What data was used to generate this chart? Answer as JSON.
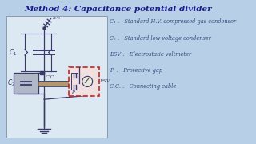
{
  "title": "Method 4: Capacitance potential divider",
  "title_color": "#1a1a8c",
  "title_fontsize": 7.5,
  "bg_color": "#b8cfe8",
  "diagram_bg": "#dce8f2",
  "legend_items": [
    "C₁ .   Standard H.V. compressed gas condenser",
    "C₂ .   Standard low voltage condenser",
    "ESV .   Electrostatic voltmeter",
    "P  .   Protective gap",
    "C.C. .   Connecting cable"
  ],
  "legend_color": "#3a4a7a",
  "legend_fontsize": 4.8,
  "diagram_color": "#3a3a6a",
  "cc_tube_color": "#c8a878",
  "red_box_color": "#cc2222",
  "gray_box_color": "#b0b8c8"
}
